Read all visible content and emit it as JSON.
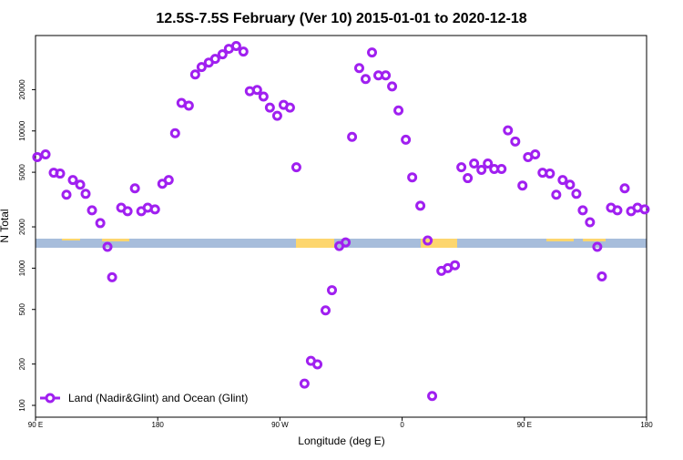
{
  "chart_data": {
    "type": "scatter",
    "title": "12.5S-7.5S February (Ver 10)   2015-01-01 to 2020-12-18",
    "x_label": "Longitude (deg E)",
    "y_label": "N Total",
    "log_y": true,
    "legend": "bottom-left",
    "xlim": [
      90,
      540
    ],
    "xticks": [
      {
        "value": 90,
        "label": "90 E"
      },
      180,
      {
        "value": 270,
        "label": "90 W"
      },
      {
        "value": 360,
        "label": "0"
      },
      {
        "value": 450,
        "label": "90 E"
      },
      {
        "value": 540,
        "label": "180"
      }
    ],
    "ylim": [
      82,
      49600
    ],
    "yticks": [
      100,
      200,
      500,
      1000,
      2000,
      5000,
      10000,
      20000
    ],
    "series": [
      {
        "name": "Land (Nadir&Glint) and Ocean (Glint)",
        "color": "#a020f0",
        "x": [
          91.3,
          97.4,
          103.4,
          108.1,
          112.8,
          117.5,
          122.9,
          126.9,
          131.6,
          137.7,
          143.0,
          146.4,
          153.1,
          157.8,
          163.2,
          167.9,
          172.6,
          178.0,
          183.4,
          188.1,
          192.8,
          197.5,
          202.9,
          207.6,
          212.3,
          217.6,
          222.3,
          227.7,
          232.4,
          237.8,
          243.1,
          247.8,
          253.2,
          257.9,
          262.6,
          268.0,
          272.7,
          277.4,
          282.1,
          288.1,
          292.8,
          297.6,
          303.6,
          308.3,
          313.7,
          318.4,
          323.1,
          328.4,
          333.1,
          337.8,
          342.5,
          347.9,
          352.6,
          357.3,
          362.7,
          367.4,
          373.4,
          378.8,
          382.1,
          388.9,
          393.6,
          398.9,
          403.6,
          408.3,
          413.0,
          418.4,
          423.1,
          427.8,
          433.2,
          437.9,
          443.3,
          448.6,
          452.7,
          458.0,
          463.4,
          468.8,
          473.5,
          478.2,
          483.6,
          488.3,
          493.0,
          498.3,
          503.7,
          507.1,
          513.8,
          518.5,
          523.9,
          528.6,
          533.3,
          538.6
        ],
        "values": [
          6450,
          6750,
          4960,
          4890,
          3430,
          4390,
          4060,
          3480,
          2640,
          2130,
          1430,
          858,
          2760,
          2600,
          3820,
          2600,
          2760,
          2680,
          4120,
          4390,
          9620,
          16000,
          15300,
          25800,
          29200,
          31500,
          33500,
          36200,
          39700,
          41600,
          37900,
          19500,
          19900,
          17800,
          14800,
          12900,
          15500,
          14800,
          5440,
          144,
          211,
          199,
          492,
          691,
          1450,
          1540,
          9050,
          28700,
          23900,
          37300,
          25400,
          25400,
          21100,
          14100,
          8630,
          4590,
          2850,
          1590,
          117,
          955,
          1000,
          1050,
          5440,
          4530,
          5790,
          5200,
          5790,
          5280,
          5280,
          10100,
          8380,
          4000,
          6450,
          6750,
          4960,
          4890,
          3430,
          4390,
          4060,
          3480,
          2640,
          2160,
          1430,
          870,
          2760,
          2640,
          3820,
          2600,
          2760,
          2680
        ]
      }
    ]
  }
}
